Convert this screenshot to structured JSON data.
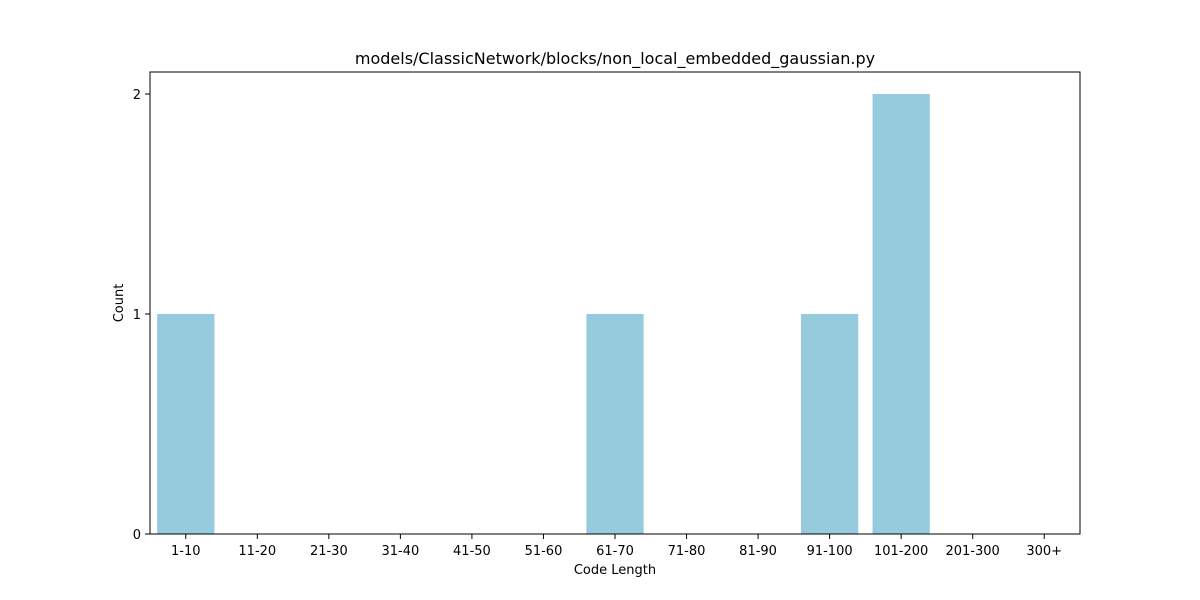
{
  "chart_data": {
    "type": "bar",
    "title": "models/ClassicNetwork/blocks/non_local_embedded_gaussian.py",
    "xlabel": "Code Length",
    "ylabel": "Count",
    "categories": [
      "1-10",
      "11-20",
      "21-30",
      "31-40",
      "41-50",
      "51-60",
      "61-70",
      "71-80",
      "81-90",
      "91-100",
      "101-200",
      "201-300",
      "300+"
    ],
    "values": [
      1,
      0,
      0,
      0,
      0,
      0,
      1,
      0,
      0,
      1,
      2,
      0,
      0
    ],
    "ylim": [
      0,
      2.1
    ],
    "yticks": [
      0,
      1,
      2
    ],
    "bar_color": "#96cadd",
    "grid": false,
    "legend": "none"
  }
}
